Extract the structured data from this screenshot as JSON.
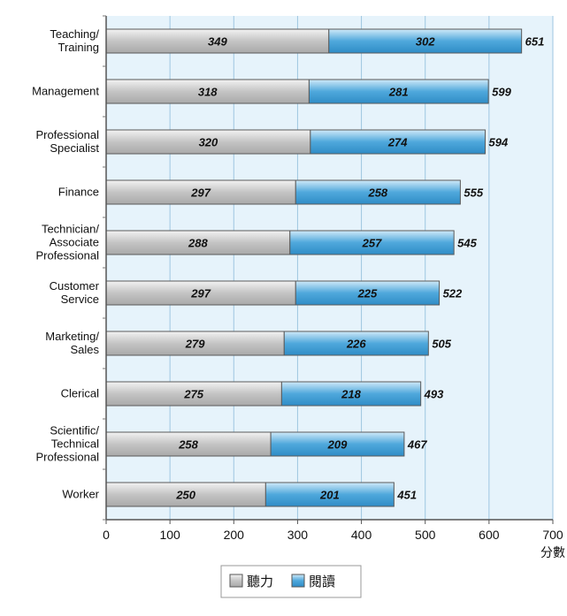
{
  "chart_data": {
    "type": "bar",
    "stacked": true,
    "orientation": "horizontal",
    "categories": [
      [
        "Teaching/",
        "Training"
      ],
      [
        "Management"
      ],
      [
        "Professional",
        "Specialist"
      ],
      [
        "Finance"
      ],
      [
        "Technician/",
        "Associate",
        "Professional"
      ],
      [
        "Customer",
        "Service"
      ],
      [
        "Marketing/",
        "Sales"
      ],
      [
        "Clerical"
      ],
      [
        "Scientific/",
        "Technical",
        "Professional"
      ],
      [
        "Worker"
      ]
    ],
    "series": [
      {
        "name": "聽力",
        "color": "#c4c4c4",
        "values": [
          349,
          318,
          320,
          297,
          288,
          297,
          279,
          275,
          258,
          250
        ]
      },
      {
        "name": "閱讀",
        "color": "#4fa8dc",
        "values": [
          302,
          281,
          274,
          258,
          257,
          225,
          226,
          218,
          209,
          201
        ]
      }
    ],
    "totals": [
      651,
      599,
      594,
      555,
      545,
      522,
      505,
      493,
      467,
      451
    ],
    "xlim": [
      0,
      700
    ],
    "xticks": [
      0,
      100,
      200,
      300,
      400,
      500,
      600,
      700
    ],
    "xlabel": "分數",
    "grid": true,
    "legend_position": "bottom-center",
    "plot_background": "#e6f3fb"
  }
}
